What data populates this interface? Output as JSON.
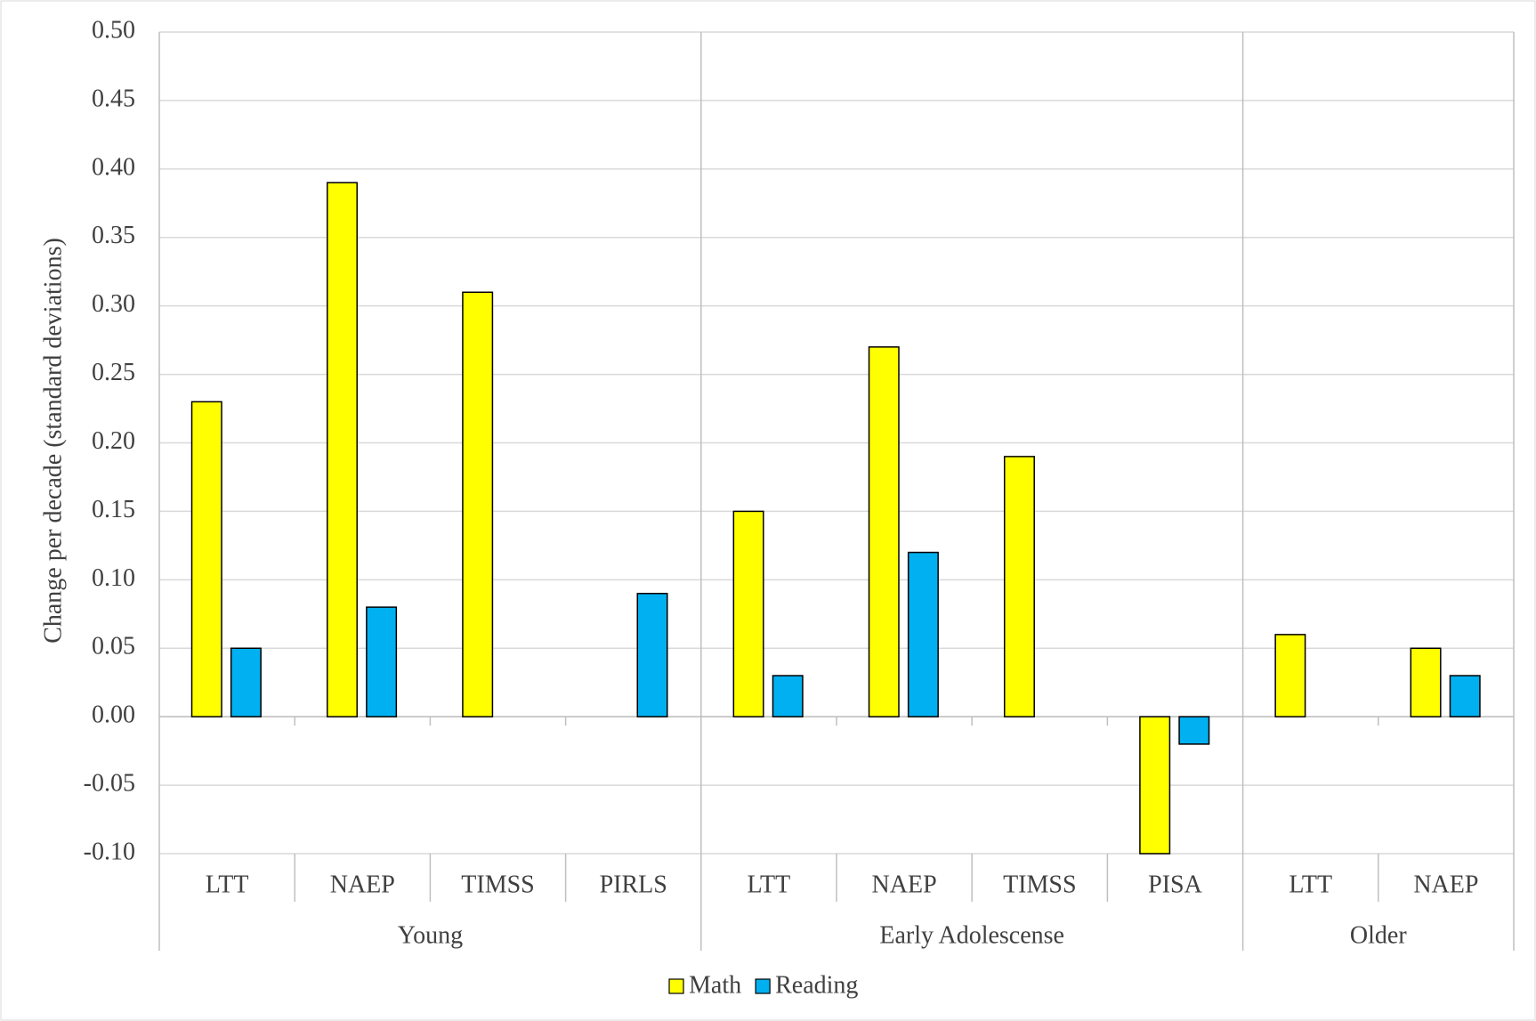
{
  "chart_data": {
    "type": "bar",
    "y_label": "Change per decade (standard deviations)",
    "groups": [
      {
        "name": "Young",
        "categories": [
          "LTT",
          "NAEP",
          "TIMSS",
          "PIRLS"
        ]
      },
      {
        "name": "Early Adolescense",
        "categories": [
          "LTT",
          "NAEP",
          "TIMSS",
          "PISA"
        ]
      },
      {
        "name": "Older",
        "categories": [
          "LTT",
          "NAEP"
        ]
      }
    ],
    "series": [
      {
        "name": "Math",
        "color": "#ffff00",
        "values": [
          0.23,
          0.39,
          0.31,
          null,
          0.15,
          0.27,
          0.19,
          -0.1,
          0.06,
          0.05
        ]
      },
      {
        "name": "Reading",
        "color": "#00b0f0",
        "values": [
          0.05,
          0.08,
          null,
          0.09,
          0.03,
          0.12,
          null,
          -0.02,
          null,
          0.03
        ]
      }
    ],
    "ylim": [
      -0.1,
      0.5
    ],
    "yticks": [
      {
        "value": -0.1,
        "label": "-0.10"
      },
      {
        "value": -0.05,
        "label": "-0.05"
      },
      {
        "value": 0,
        "label": "0.00"
      },
      {
        "value": 0.05,
        "label": "0.05"
      },
      {
        "value": 0.1,
        "label": "0.10"
      },
      {
        "value": 0.15,
        "label": "0.15"
      },
      {
        "value": 0.2,
        "label": "0.20"
      },
      {
        "value": 0.25,
        "label": "0.25"
      },
      {
        "value": 0.3,
        "label": "0.30"
      },
      {
        "value": 0.35,
        "label": "0.35"
      },
      {
        "value": 0.4,
        "label": "0.40"
      },
      {
        "value": 0.45,
        "label": "0.45"
      },
      {
        "value": 0.5,
        "label": "0.50"
      }
    ],
    "grid": true,
    "legend": "bottom"
  }
}
